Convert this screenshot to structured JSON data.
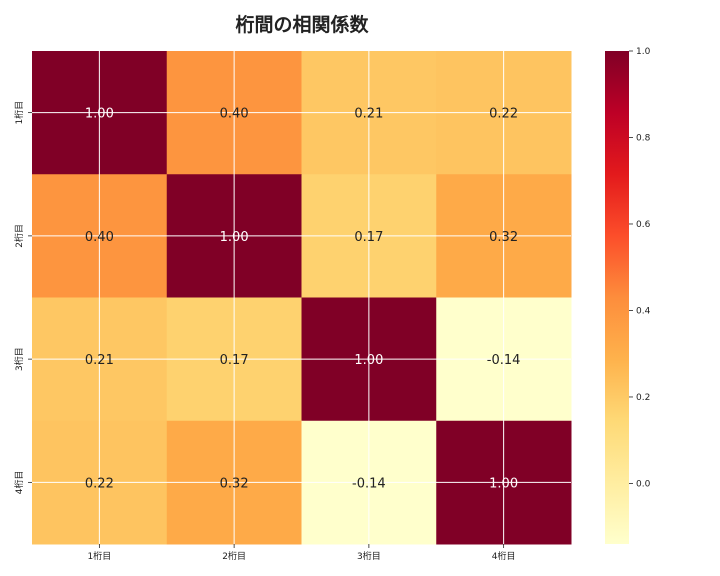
{
  "chart_data": {
    "type": "heatmap",
    "title": "桁間の相関係数",
    "row_labels": [
      "1桁目",
      "2桁目",
      "3桁目",
      "4桁目"
    ],
    "col_labels": [
      "1桁目",
      "2桁目",
      "3桁目",
      "4桁目"
    ],
    "values": [
      [
        1.0,
        0.4,
        0.21,
        0.22
      ],
      [
        0.4,
        1.0,
        0.17,
        0.32
      ],
      [
        0.21,
        0.17,
        1.0,
        -0.14
      ],
      [
        0.22,
        0.32,
        -0.14,
        1.0
      ]
    ],
    "cell_text": [
      [
        "1.00",
        "0.40",
        "0.21",
        "0.22"
      ],
      [
        "0.40",
        "1.00",
        "0.17",
        "0.32"
      ],
      [
        "0.21",
        "0.17",
        "1.00",
        "-0.14"
      ],
      [
        "0.22",
        "0.32",
        "-0.14",
        "1.00"
      ]
    ],
    "colormap": "YlOrRd",
    "vmin": -0.14,
    "vmax": 1.0,
    "colorbar": {
      "ticks": [
        0.0,
        0.2,
        0.4,
        0.6,
        0.8,
        1.0
      ],
      "tick_labels": [
        "0.0",
        "0.2",
        "0.4",
        "0.6",
        "0.8",
        "1.0"
      ]
    },
    "grid": true,
    "xlabel": "",
    "ylabel": ""
  }
}
